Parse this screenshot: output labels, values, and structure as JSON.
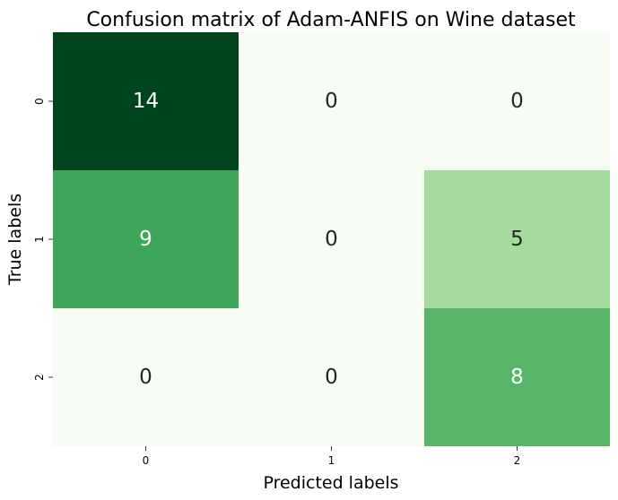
{
  "chart_data": {
    "type": "heatmap",
    "title": "Confusion matrix of Adam-ANFIS on Wine dataset",
    "xlabel": "Predicted labels",
    "ylabel": "True labels",
    "x_categories": [
      "0",
      "1",
      "2"
    ],
    "y_categories": [
      "0",
      "1",
      "2"
    ],
    "values": [
      [
        14,
        0,
        0
      ],
      [
        9,
        0,
        5
      ],
      [
        0,
        0,
        8
      ]
    ],
    "value_range": [
      0,
      14
    ],
    "colormap": "Greens",
    "colorbar": false,
    "annotations": true
  }
}
